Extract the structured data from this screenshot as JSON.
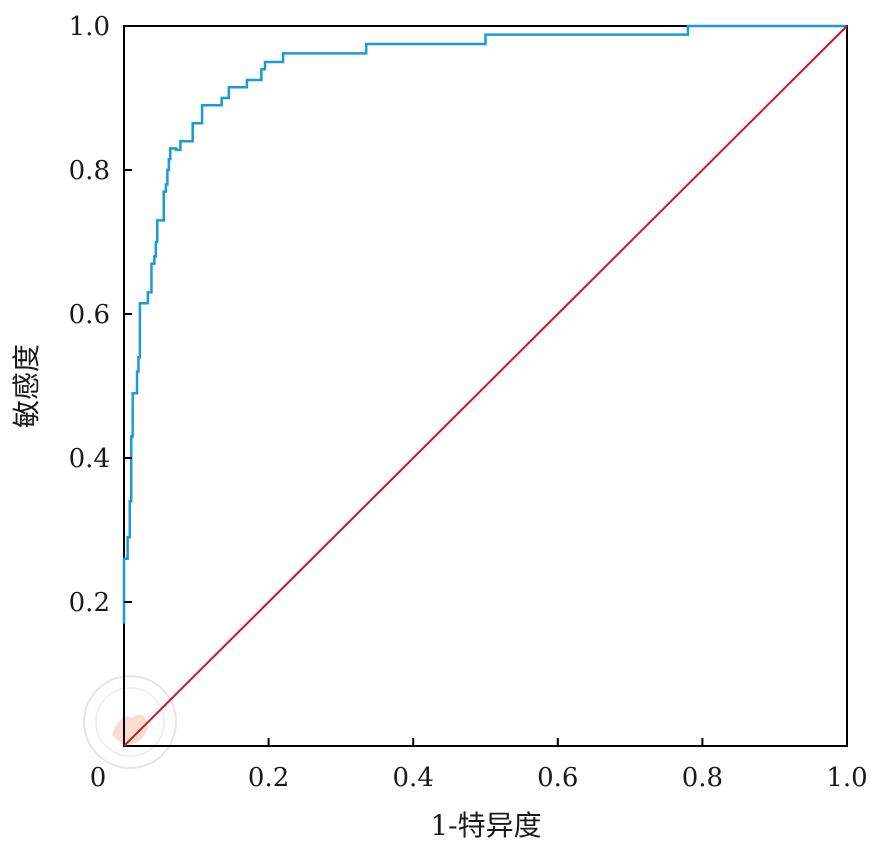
{
  "chart_data": {
    "type": "line",
    "title": "",
    "xlabel": "1-特异度",
    "ylabel": "敏感度",
    "xlim": [
      0,
      1
    ],
    "ylim": [
      0,
      1
    ],
    "grid": false,
    "legend": "none",
    "x_ticks": [
      {
        "value": 0,
        "label": "0"
      },
      {
        "value": 0.2,
        "label": "0.2"
      },
      {
        "value": 0.4,
        "label": "0.4"
      },
      {
        "value": 0.6,
        "label": "0.6"
      },
      {
        "value": 0.8,
        "label": "0.8"
      },
      {
        "value": 1.0,
        "label": "1.0"
      }
    ],
    "y_ticks": [
      {
        "value": 0.2,
        "label": "0.2"
      },
      {
        "value": 0.4,
        "label": "0.4"
      },
      {
        "value": 0.6,
        "label": "0.6"
      },
      {
        "value": 0.8,
        "label": "0.8"
      },
      {
        "value": 1.0,
        "label": "1.0"
      }
    ],
    "series": [
      {
        "color": "#1a9ad6",
        "step": true,
        "points": [
          [
            0,
            0.17
          ],
          [
            0,
            0.26
          ],
          [
            0.005,
            0.26
          ],
          [
            0.005,
            0.29
          ],
          [
            0.008,
            0.29
          ],
          [
            0.008,
            0.34
          ],
          [
            0.01,
            0.34
          ],
          [
            0.01,
            0.43
          ],
          [
            0.012,
            0.43
          ],
          [
            0.012,
            0.49
          ],
          [
            0.018,
            0.49
          ],
          [
            0.018,
            0.52
          ],
          [
            0.02,
            0.52
          ],
          [
            0.02,
            0.54
          ],
          [
            0.022,
            0.54
          ],
          [
            0.022,
            0.615
          ],
          [
            0.033,
            0.615
          ],
          [
            0.033,
            0.63
          ],
          [
            0.038,
            0.63
          ],
          [
            0.038,
            0.67
          ],
          [
            0.042,
            0.67
          ],
          [
            0.042,
            0.68
          ],
          [
            0.044,
            0.68
          ],
          [
            0.044,
            0.7
          ],
          [
            0.046,
            0.7
          ],
          [
            0.046,
            0.73
          ],
          [
            0.055,
            0.73
          ],
          [
            0.055,
            0.77
          ],
          [
            0.058,
            0.77
          ],
          [
            0.058,
            0.78
          ],
          [
            0.06,
            0.78
          ],
          [
            0.06,
            0.8
          ],
          [
            0.062,
            0.8
          ],
          [
            0.062,
            0.815
          ],
          [
            0.064,
            0.815
          ],
          [
            0.064,
            0.83
          ],
          [
            0.072,
            0.83
          ],
          [
            0.072,
            0.828
          ],
          [
            0.078,
            0.828
          ],
          [
            0.078,
            0.84
          ],
          [
            0.095,
            0.84
          ],
          [
            0.095,
            0.865
          ],
          [
            0.108,
            0.865
          ],
          [
            0.108,
            0.89
          ],
          [
            0.135,
            0.89
          ],
          [
            0.135,
            0.9
          ],
          [
            0.145,
            0.9
          ],
          [
            0.145,
            0.915
          ],
          [
            0.17,
            0.915
          ],
          [
            0.17,
            0.925
          ],
          [
            0.19,
            0.925
          ],
          [
            0.19,
            0.94
          ],
          [
            0.195,
            0.94
          ],
          [
            0.195,
            0.95
          ],
          [
            0.22,
            0.95
          ],
          [
            0.22,
            0.962
          ],
          [
            0.335,
            0.962
          ],
          [
            0.335,
            0.975
          ],
          [
            0.5,
            0.975
          ],
          [
            0.5,
            0.988
          ],
          [
            0.78,
            0.988
          ],
          [
            0.78,
            1.0
          ],
          [
            1.0,
            1.0
          ]
        ]
      },
      {
        "color": "#d0141e",
        "step": false,
        "points": [
          [
            0,
            0
          ],
          [
            1,
            1
          ]
        ]
      }
    ]
  }
}
